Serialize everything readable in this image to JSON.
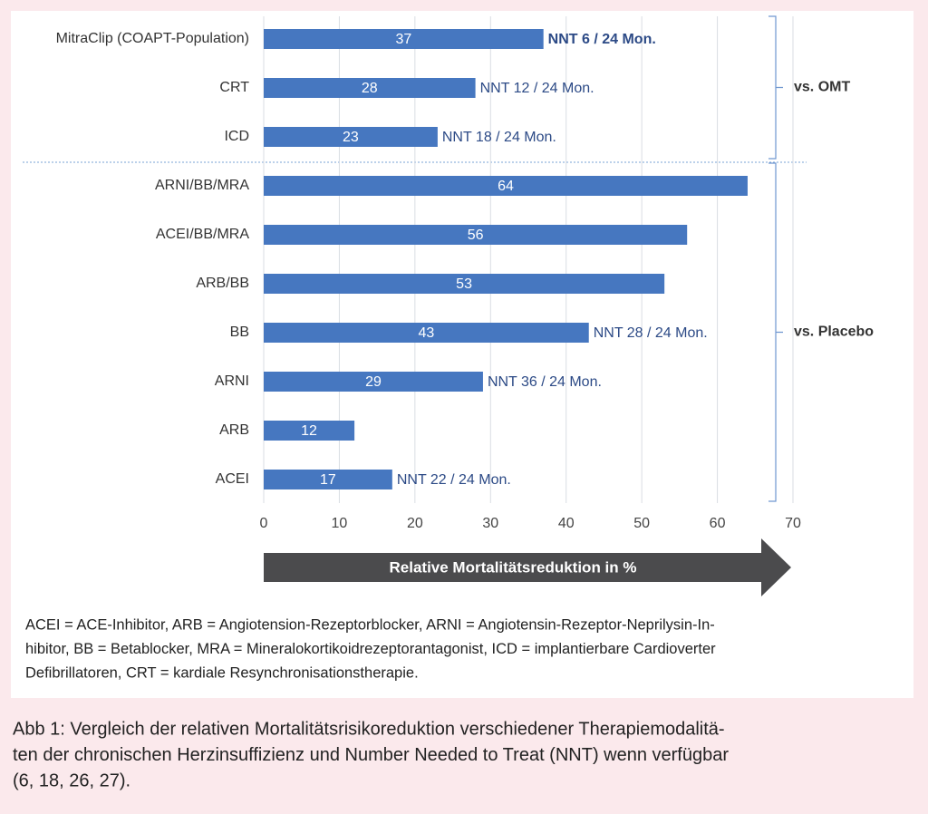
{
  "chart_data": {
    "type": "bar",
    "orientation": "horizontal",
    "categories": [
      "MitraClip (COAPT-Population)",
      "CRT",
      "ICD",
      "ARNI/BB/MRA",
      "ACEI/BB/MRA",
      "ARB/BB",
      "BB",
      "ARNI",
      "ARB",
      "ACEI"
    ],
    "values": [
      37,
      28,
      23,
      64,
      56,
      53,
      43,
      29,
      12,
      17
    ],
    "color": "#4677c0",
    "xlim": [
      0,
      70
    ],
    "xticks": [
      0,
      10,
      20,
      30,
      40,
      50,
      60,
      70
    ],
    "grid": true,
    "xlabel": "Relative Mortalitätsreduktion in %",
    "annotations": [
      {
        "category": "MitraClip (COAPT-Population)",
        "text": "NNT 6 / 24 Mon.",
        "bold": true
      },
      {
        "category": "CRT",
        "text": "NNT 12 / 24 Mon."
      },
      {
        "category": "ICD",
        "text": "NNT 18 / 24 Mon."
      },
      {
        "category": "BB",
        "text": "NNT 28 / 24 Mon."
      },
      {
        "category": "ARNI",
        "text": "NNT 36 / 24 Mon."
      },
      {
        "category": "ACEI",
        "text": "NNT 22 / 24 Mon."
      }
    ],
    "groups": [
      {
        "label": "vs. OMT",
        "size": 3
      },
      {
        "label": "vs. Placebo",
        "size": 7
      }
    ]
  },
  "footnote": [
    "ACEI = ACE-Inhibitor, ARB = Angiotension-Rezeptorblocker, ARNI = Angiotensin-Rezeptor-Neprilysin-In-",
    "hibitor, BB = Betablocker, MRA = Mineralokortikoidrezeptorantagonist, ICD = implantierbare Cardioverter",
    "Defibrillatoren, CRT = kardiale Resynchronisationstherapie."
  ],
  "caption": [
    "Abb 1: Vergleich der relativen Mortalitätsrisikoreduktion verschiedener Therapiemodalitä-",
    "ten der chronischen Herzinsuffizienz und Number Needed to Treat (NNT) wenn verfügbar",
    "(6, 18, 26, 27)."
  ]
}
